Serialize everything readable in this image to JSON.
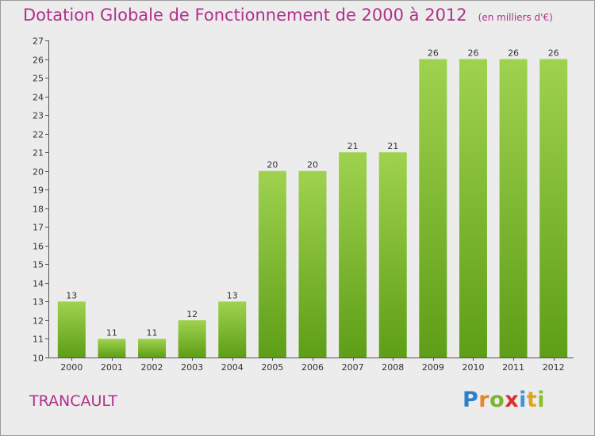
{
  "chart_data": {
    "type": "bar",
    "title": "Dotation Globale de Fonctionnement de 2000 à 2012",
    "subtitle": "(en milliers d'€)",
    "categories": [
      "2000",
      "2001",
      "2002",
      "2003",
      "2004",
      "2005",
      "2006",
      "2007",
      "2008",
      "2009",
      "2010",
      "2011",
      "2012"
    ],
    "values": [
      13,
      11,
      11,
      12,
      13,
      20,
      20,
      21,
      21,
      26,
      26,
      26,
      26
    ],
    "ylim": [
      10,
      27
    ],
    "yticks": [
      10,
      11,
      12,
      13,
      14,
      15,
      16,
      17,
      18,
      19,
      20,
      21,
      22,
      23,
      24,
      25,
      26,
      27
    ],
    "grid": false,
    "bar_color_top": "#9fd24f",
    "bar_color_bottom": "#5e9e17"
  },
  "footer": {
    "commune": "TRANCAULT",
    "logo_text": "Proxiti"
  },
  "colors": {
    "title": "#b0308a",
    "background": "#ececec"
  }
}
